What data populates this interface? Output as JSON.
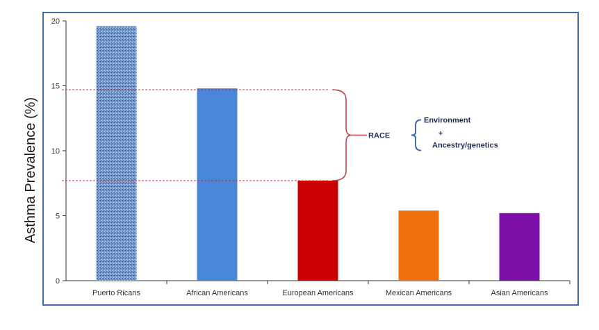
{
  "chart_data": {
    "type": "bar",
    "title": "",
    "xlabel": "",
    "ylabel": "Asthma Prevalence (%)",
    "ylim": [
      0,
      20
    ],
    "yticks": [
      0,
      5,
      10,
      15,
      20
    ],
    "grid": false,
    "categories": [
      "Puerto Ricans",
      "African Americans",
      "European Americans",
      "Mexican Americans",
      "Asian Americans"
    ],
    "values": [
      19.6,
      14.8,
      7.7,
      5.4,
      5.2
    ],
    "colors": [
      "#5a7fb8",
      "#4a86d8",
      "#cc0000",
      "#f07010",
      "#7b0fa8"
    ],
    "patterns": [
      "dotted-texture",
      "solid",
      "solid",
      "solid",
      "solid"
    ],
    "reference_lines": [
      {
        "y": 14.7,
        "color": "#cc3333",
        "style": "dashed"
      },
      {
        "y": 7.7,
        "color": "#cc3333",
        "style": "dashed"
      }
    ],
    "annotation": {
      "bracket_from": 14.7,
      "bracket_to": 7.7,
      "race_label": "RACE",
      "environment_label": "Environment",
      "plus_label": "+",
      "ancestry_label": "Ancestry/genetics"
    }
  }
}
